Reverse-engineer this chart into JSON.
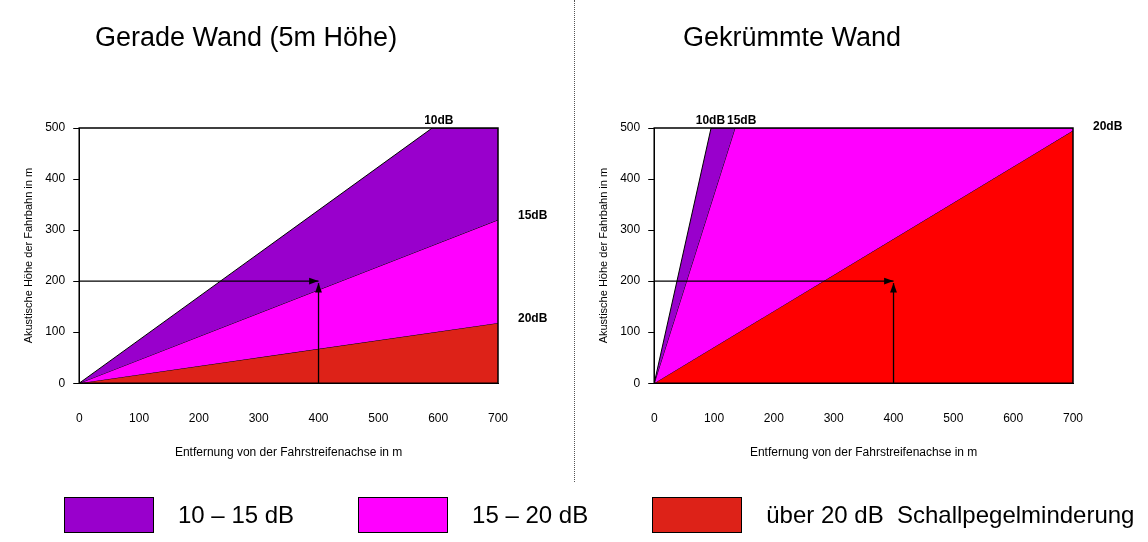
{
  "chart_data": [
    {
      "type": "area",
      "title": "Gerade Wand (5m Höhe)",
      "xlabel": "Entfernung von der Fahrstreifenachse in m",
      "ylabel": "Akustische Höhe der Fahrbahn in m",
      "xlim": [
        0,
        700
      ],
      "xticks": [
        0,
        100,
        200,
        300,
        400,
        500,
        600,
        700
      ],
      "ylim": [
        0,
        500
      ],
      "yticks": [
        0,
        100,
        200,
        300,
        400,
        500
      ],
      "grid": false,
      "legend": "bottom",
      "series": [
        {
          "name": "10 – 15 dB",
          "color": "#9900cc",
          "x": [
            0,
            590,
            700
          ],
          "values": [
            0,
            500,
            500
          ]
        },
        {
          "name": "15 – 20 dB",
          "color": "#ff00ff",
          "x": [
            0,
            700
          ],
          "values": [
            0,
            320
          ]
        },
        {
          "name": "über 20 dB  Schallpegelminderung",
          "color": "#dd2218",
          "x": [
            0,
            700
          ],
          "values": [
            0,
            118
          ]
        }
      ],
      "annotations": [
        {
          "text": "10dB",
          "x": 590,
          "y": 500
        },
        {
          "text": "15dB",
          "x": 700,
          "y": 320
        },
        {
          "text": "20dB",
          "x": 700,
          "y": 118
        }
      ]
    },
    {
      "type": "area",
      "title": "Gekrümmte Wand",
      "xlabel": "Entfernung von der Fahrstreifenachse in m",
      "ylabel": "Akustische Höhe der Fahrbahn in m",
      "xlim": [
        0,
        700
      ],
      "xticks": [
        0,
        100,
        200,
        300,
        400,
        500,
        600,
        700
      ],
      "ylim": [
        0,
        500
      ],
      "yticks": [
        0,
        100,
        200,
        300,
        400,
        500
      ],
      "grid": false,
      "series": [
        {
          "color": "#9900cc",
          "x": [
            0,
            95,
            135
          ],
          "values": [
            0,
            500,
            500
          ]
        },
        {
          "color": "#ff00ff",
          "x": [
            0,
            135,
            700
          ],
          "values": [
            0,
            500,
            500
          ]
        },
        {
          "color": "#ff0000",
          "x": [
            0,
            700
          ],
          "values": [
            0,
            495
          ]
        }
      ],
      "annotations": [
        {
          "text": "10dB",
          "x": 95,
          "y": 500
        },
        {
          "text": "15dB",
          "x": 135,
          "y": 500
        },
        {
          "text": "20dB",
          "x": 700,
          "y": 495
        }
      ]
    }
  ]
}
